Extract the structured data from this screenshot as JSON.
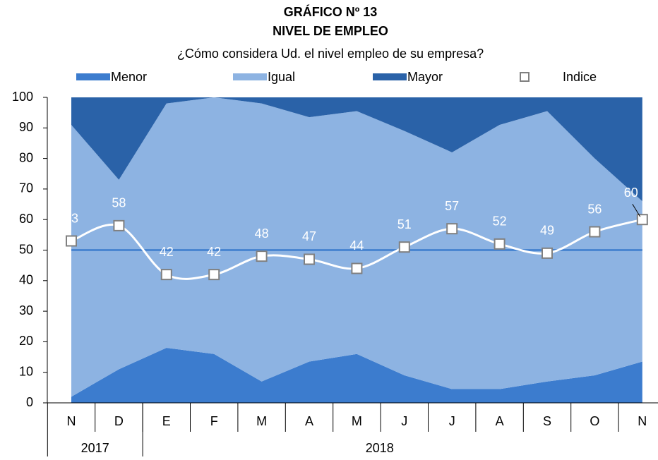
{
  "chart_data": {
    "type": "stacked-area",
    "title": "GRÁFICO Nº 13",
    "subtitle": "NIVEL DE EMPLEO",
    "question": "¿Cómo considera Ud. el nivel empleo de su empresa?",
    "categories": [
      "N",
      "D",
      "E",
      "F",
      "M",
      "A",
      "M",
      "J",
      "J",
      "A",
      "S",
      "O",
      "N"
    ],
    "groups": [
      {
        "label": "2017",
        "count": 2
      },
      {
        "label": "2018",
        "count": 11
      }
    ],
    "series": [
      {
        "name": "Menor",
        "color": "#3c7cce",
        "values": [
          2,
          11,
          18,
          16,
          7,
          13.5,
          16,
          9,
          4.5,
          4.5,
          7,
          9,
          13.5
        ]
      },
      {
        "name": "Igual",
        "color": "#8db3e2",
        "values": [
          89,
          62,
          80,
          84,
          91,
          80,
          79.5,
          80,
          77.5,
          86.5,
          88.5,
          71,
          52.5
        ]
      },
      {
        "name": "Mayor",
        "color": "#2a62a8",
        "values": [
          9,
          27,
          2,
          0,
          2,
          6.5,
          4.5,
          11,
          18,
          9,
          4.5,
          20,
          34
        ]
      }
    ],
    "index": {
      "name": "Indice",
      "type": "line",
      "color": "#ffffff",
      "marker_color": "#808080",
      "values": [
        53,
        58,
        42,
        42,
        48,
        47,
        44,
        51,
        57,
        52,
        49,
        56,
        60
      ]
    },
    "reference_line": {
      "value": 50,
      "color": "#4a86d1"
    },
    "ylim": [
      0,
      100
    ],
    "yticks": [
      0,
      10,
      20,
      30,
      40,
      50,
      60,
      70,
      80,
      90,
      100
    ]
  }
}
